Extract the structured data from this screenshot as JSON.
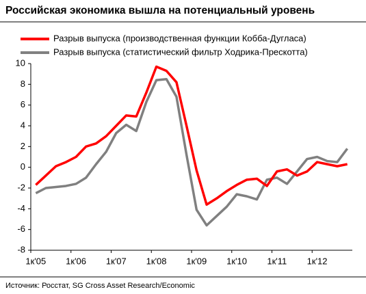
{
  "chart_data": {
    "type": "line",
    "title": "Российская экономика вышла на потенциальный уровень",
    "source": "Источник: Росстат, SG Cross Asset Research/Economic",
    "categories": [
      "1к'05",
      null,
      null,
      null,
      "1к'06",
      null,
      null,
      null,
      "1к'07",
      null,
      null,
      null,
      "1к'08",
      null,
      null,
      null,
      "1к'09",
      null,
      null,
      null,
      "1к'10",
      null,
      null,
      null,
      "1к'11",
      null,
      null,
      null,
      "1к'12",
      null,
      null,
      null
    ],
    "series": [
      {
        "name": "Разрыв выпуска (производственная функции Кобба-Дугласа)",
        "color": "#ff0000",
        "values": [
          -1.7,
          -0.8,
          0.1,
          0.5,
          1.0,
          2.0,
          2.3,
          3.0,
          4.0,
          5.0,
          4.9,
          7.2,
          9.7,
          9.3,
          8.2,
          4.0,
          -0.3,
          -3.6,
          -3.0,
          -2.3,
          -1.7,
          -1.2,
          -1.1,
          -1.8,
          -0.4,
          -0.2,
          -0.8,
          -0.4,
          0.5,
          0.3,
          0.1,
          0.3
        ]
      },
      {
        "name": "Разрыв выпуска (статистический фильтр Ходрика-Прескотта)",
        "color": "#808080",
        "values": [
          -2.5,
          -2.0,
          -1.9,
          -1.8,
          -1.6,
          -1.0,
          0.3,
          1.5,
          3.3,
          4.1,
          3.5,
          6.3,
          8.4,
          8.5,
          6.8,
          1.2,
          -4.1,
          -5.6,
          -4.7,
          -3.8,
          -2.6,
          -2.8,
          -3.1,
          -1.2,
          -1.0,
          -1.6,
          -0.4,
          0.8,
          1.0,
          0.6,
          0.5,
          1.8
        ]
      }
    ],
    "ylim": [
      -8,
      10
    ],
    "yticks": [
      -8,
      -6,
      -4,
      -2,
      0,
      2,
      4,
      6,
      8,
      10
    ],
    "grid": false
  }
}
